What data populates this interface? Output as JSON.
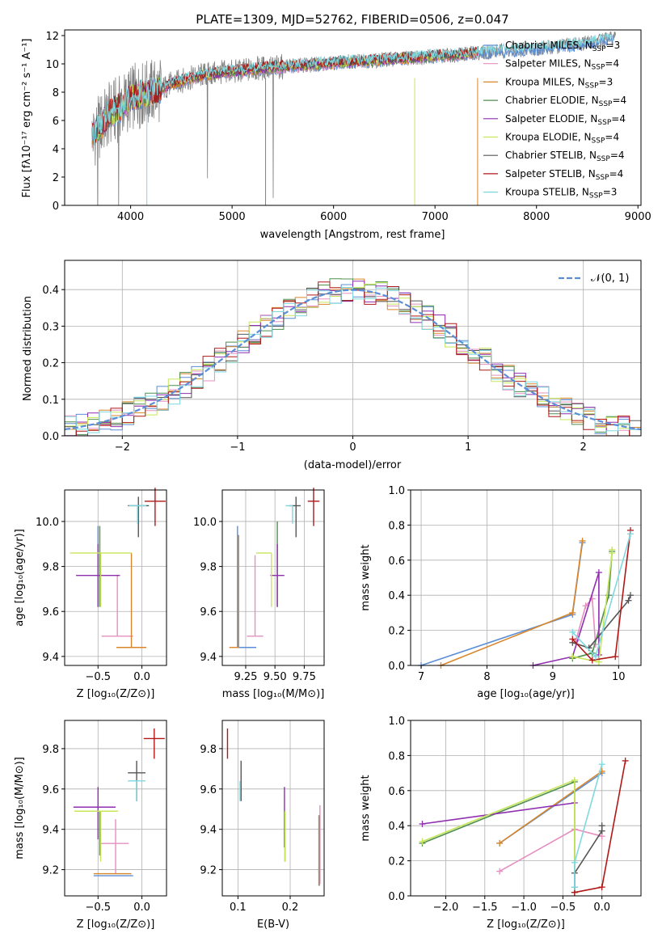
{
  "colors": {
    "chabrier_miles": "#5b8ed6",
    "salpeter_miles": "#e58fc0",
    "kroupa_miles": "#d8862a",
    "chabrier_elodie": "#4f8f4f",
    "salpeter_elodie": "#8f2fb0",
    "kroupa_elodie": "#c8e65a",
    "chabrier_stelib": "#555555",
    "salpeter_stelib": "#b01818",
    "kroupa_stelib": "#7fd8e0",
    "data": "#808080",
    "gauss": "#5b8ed6"
  },
  "chart_data": [
    {
      "id": "spectrum",
      "type": "line",
      "title": "PLATE=1309, MJD=52762, FIBERID=0506, z=0.047",
      "xlabel": "wavelength [Angstrom, rest frame]",
      "ylabel": "Flux [fλ10⁻¹⁷ erg cm⁻² s⁻¹ A⁻¹]",
      "xlim": [
        3350,
        9030
      ],
      "ylim": [
        0,
        12.4
      ],
      "xticks": [
        4000,
        5000,
        6000,
        7000,
        8000,
        9000
      ],
      "yticks": [
        0,
        2,
        4,
        6,
        8,
        10,
        12
      ],
      "grid": false,
      "legend_position": "top-right",
      "legend": [
        {
          "name": "Chabrier MILES, N",
          "sub": "SSP",
          "tail": "=3",
          "color": "chabrier_miles"
        },
        {
          "name": "Salpeter MILES, N",
          "sub": "SSP",
          "tail": "=4",
          "color": "salpeter_miles"
        },
        {
          "name": "Kroupa MILES, N",
          "sub": "SSP",
          "tail": "=3",
          "color": "kroupa_miles"
        },
        {
          "name": "Chabrier ELODIE, N",
          "sub": "SSP",
          "tail": "=4",
          "color": "chabrier_elodie"
        },
        {
          "name": "Salpeter ELODIE, N",
          "sub": "SSP",
          "tail": "=4",
          "color": "salpeter_elodie"
        },
        {
          "name": "Kroupa ELODIE, N",
          "sub": "SSP",
          "tail": "=4",
          "color": "kroupa_elodie"
        },
        {
          "name": "Chabrier STELIB, N",
          "sub": "SSP",
          "tail": "=4",
          "color": "chabrier_stelib"
        },
        {
          "name": "Salpeter STELIB, N",
          "sub": "SSP",
          "tail": "=4",
          "color": "salpeter_stelib"
        },
        {
          "name": "Kroupa STELIB, N",
          "sub": "SSP",
          "tail": "=3",
          "color": "kroupa_stelib"
        }
      ],
      "continuum": {
        "x": [
          3620,
          3700,
          3800,
          3900,
          4000,
          4100,
          4200,
          4300,
          4400,
          4500,
          4700,
          4900,
          5100,
          5300,
          5500,
          5700,
          5900,
          6100,
          6300,
          6500,
          6700,
          6900,
          7100,
          7300,
          7420
        ],
        "y": [
          4.8,
          5.6,
          6.5,
          6.9,
          7.6,
          7.8,
          8.0,
          8.2,
          8.6,
          8.8,
          9.2,
          9.4,
          9.5,
          9.7,
          9.8,
          9.9,
          10.0,
          10.1,
          10.2,
          10.3,
          10.4,
          10.5,
          10.6,
          10.7,
          10.8
        ]
      },
      "model_tail": {
        "x": [
          7420,
          7600,
          7800,
          8000,
          8200,
          8400,
          8600,
          8760
        ],
        "y": [
          10.8,
          10.9,
          11.0,
          11.1,
          11.2,
          11.4,
          11.6,
          11.8
        ]
      },
      "data_range": [
        3620,
        8780
      ]
    },
    {
      "id": "residuals",
      "type": "histogram",
      "xlabel": "(data-model)/error",
      "ylabel": "Normed distribution",
      "xlim": [
        -2.5,
        2.5
      ],
      "ylim": [
        0,
        0.48
      ],
      "xticks": [
        -2,
        -1,
        0,
        1,
        2
      ],
      "yticks": [
        0.0,
        0.1,
        0.2,
        0.3,
        0.4
      ],
      "grid": true,
      "legend_position": "top-right",
      "gauss_label": "𝒩(0, 1)",
      "bin_width": 0.1
    },
    {
      "id": "age_vs_Z",
      "type": "errorbar",
      "xlabel": "Z [log₁₀(Z/Z⊙)]",
      "ylabel": "age  [log₁₀(age/yr)]",
      "xlim": [
        -0.88,
        0.28
      ],
      "ylim": [
        9.36,
        10.14
      ],
      "xticks": [
        -0.5,
        0.0
      ],
      "xticklabels": [
        "−0.5",
        "0.0"
      ],
      "yticks": [
        9.4,
        9.6,
        9.8,
        10.0
      ],
      "grid": true,
      "points": [
        {
          "color": "chabrier_miles",
          "x": -0.5,
          "y": 9.62,
          "xe": [
            0.0,
            0.0
          ],
          "ye": [
            0.0,
            0.36
          ]
        },
        {
          "color": "salpeter_miles",
          "x": -0.28,
          "y": 9.49,
          "xe": [
            0.18,
            0.18
          ],
          "ye": [
            0.0,
            0.27
          ]
        },
        {
          "color": "kroupa_miles",
          "x": -0.12,
          "y": 9.44,
          "xe": [
            0.17,
            0.17
          ],
          "ye": [
            0.0,
            0.42
          ]
        },
        {
          "color": "chabrier_elodie",
          "x": -0.48,
          "y": 9.8,
          "xe": [
            0.0,
            0.0
          ],
          "ye": [
            0.18,
            0.18
          ]
        },
        {
          "color": "salpeter_elodie",
          "x": -0.5,
          "y": 9.76,
          "xe": [
            0.25,
            0.25
          ],
          "ye": [
            0.14,
            0.14
          ]
        },
        {
          "color": "kroupa_elodie",
          "x": -0.47,
          "y": 9.86,
          "xe": [
            0.35,
            0.35
          ],
          "ye": [
            0.24,
            0.0
          ]
        },
        {
          "color": "chabrier_stelib",
          "x": -0.04,
          "y": 10.07,
          "xe": [
            0.12,
            0.12
          ],
          "ye": [
            0.14,
            0.04
          ]
        },
        {
          "color": "salpeter_stelib",
          "x": 0.15,
          "y": 10.09,
          "xe": [
            0.12,
            0.12
          ],
          "ye": [
            0.11,
            0.06
          ]
        },
        {
          "color": "kroupa_stelib",
          "x": -0.05,
          "y": 10.07,
          "xe": [
            0.1,
            0.1
          ],
          "ye": [
            0.08,
            0.0
          ]
        }
      ]
    },
    {
      "id": "age_vs_mass",
      "type": "errorbar",
      "xlabel": "mass [log₁₀(M/M⊙)]",
      "ylabel": "",
      "xlim": [
        9.05,
        9.92
      ],
      "ylim": [
        9.36,
        10.14
      ],
      "xticks": [
        9.25,
        9.5,
        9.75
      ],
      "xticklabels": [
        "9.25",
        "9.50",
        "9.75"
      ],
      "yticks": [
        9.4,
        9.6,
        9.8,
        10.0
      ],
      "grid": true,
      "points": [
        {
          "color": "chabrier_miles",
          "x": 9.18,
          "y": 9.44,
          "xe": [
            0.0,
            0.16
          ],
          "ye": [
            0.0,
            0.54
          ]
        },
        {
          "color": "salpeter_miles",
          "x": 9.33,
          "y": 9.49,
          "xe": [
            0.07,
            0.07
          ],
          "ye": [
            0.0,
            0.36
          ]
        },
        {
          "color": "kroupa_miles",
          "x": 9.19,
          "y": 9.44,
          "xe": [
            0.08,
            0.0
          ],
          "ye": [
            0.0,
            0.5
          ]
        },
        {
          "color": "chabrier_elodie",
          "x": 9.52,
          "y": 9.8,
          "xe": [
            0.0,
            0.0
          ],
          "ye": [
            0.18,
            0.2
          ]
        },
        {
          "color": "salpeter_elodie",
          "x": 9.52,
          "y": 9.76,
          "xe": [
            0.06,
            0.06
          ],
          "ye": [
            0.14,
            0.14
          ]
        },
        {
          "color": "kroupa_elodie",
          "x": 9.47,
          "y": 9.86,
          "xe": [
            0.13,
            0.0
          ],
          "ye": [
            0.24,
            0.0
          ]
        },
        {
          "color": "chabrier_stelib",
          "x": 9.68,
          "y": 10.07,
          "xe": [
            0.06,
            0.04
          ],
          "ye": [
            0.14,
            0.04
          ]
        },
        {
          "color": "salpeter_stelib",
          "x": 9.83,
          "y": 10.09,
          "xe": [
            0.05,
            0.05
          ],
          "ye": [
            0.11,
            0.06
          ]
        },
        {
          "color": "kroupa_stelib",
          "x": 9.65,
          "y": 10.07,
          "xe": [
            0.06,
            0.0
          ],
          "ye": [
            0.08,
            0.0
          ]
        }
      ]
    },
    {
      "id": "weight_vs_age",
      "type": "line",
      "xlabel": "age  [log₁₀(age/yr)]",
      "ylabel": "mass weight",
      "xlim": [
        6.84,
        10.34
      ],
      "ylim": [
        0,
        1.0
      ],
      "xticks": [
        7,
        8,
        9,
        10
      ],
      "yticks": [
        0.0,
        0.2,
        0.4,
        0.6,
        0.8,
        1.0
      ],
      "grid": true,
      "series": [
        {
          "color": "chabrier_miles",
          "x": [
            7.0,
            9.3,
            9.45
          ],
          "y": [
            0.0,
            0.29,
            0.7
          ]
        },
        {
          "color": "kroupa_miles",
          "x": [
            7.3,
            9.3,
            9.45
          ],
          "y": [
            0.0,
            0.3,
            0.71
          ]
        },
        {
          "color": "salpeter_miles",
          "x": [
            9.35,
            9.5,
            9.6,
            9.65
          ],
          "y": [
            0.14,
            0.34,
            0.38,
            0.12
          ]
        },
        {
          "color": "chabrier_elodie",
          "x": [
            9.3,
            9.6,
            9.85,
            9.9
          ],
          "y": [
            0.04,
            0.07,
            0.4,
            0.65
          ]
        },
        {
          "color": "salpeter_elodie",
          "x": [
            8.7,
            9.3,
            9.7,
            9.7
          ],
          "y": [
            0.0,
            0.05,
            0.53,
            0.06
          ]
        },
        {
          "color": "kroupa_elodie",
          "x": [
            9.3,
            9.7,
            9.9,
            9.9
          ],
          "y": [
            0.05,
            0.02,
            0.64,
            0.66
          ]
        },
        {
          "color": "chabrier_stelib",
          "x": [
            9.3,
            9.55,
            10.15,
            10.18
          ],
          "y": [
            0.13,
            0.1,
            0.37,
            0.4
          ]
        },
        {
          "color": "salpeter_stelib",
          "x": [
            9.3,
            9.6,
            9.95,
            10.18
          ],
          "y": [
            0.15,
            0.03,
            0.05,
            0.77
          ]
        },
        {
          "color": "kroupa_stelib",
          "x": [
            9.3,
            9.65,
            10.18
          ],
          "y": [
            0.19,
            0.05,
            0.75
          ]
        }
      ]
    },
    {
      "id": "mass_vs_Z",
      "type": "errorbar",
      "xlabel": "Z [log₁₀(Z/Z⊙)]",
      "ylabel": "mass [log₁₀(M/M⊙)]",
      "xlim": [
        -0.88,
        0.28
      ],
      "ylim": [
        9.07,
        9.94
      ],
      "xticks": [
        -0.5,
        0.0
      ],
      "xticklabels": [
        "−0.5",
        "0.0"
      ],
      "yticks": [
        9.2,
        9.4,
        9.6,
        9.8
      ],
      "grid": true,
      "points": [
        {
          "color": "chabrier_miles",
          "x": -0.3,
          "y": 9.17,
          "xe": [
            0.25,
            0.2
          ],
          "ye": [
            0.0,
            0.0
          ]
        },
        {
          "color": "salpeter_miles",
          "x": -0.3,
          "y": 9.33,
          "xe": [
            0.18,
            0.15
          ],
          "ye": [
            0.15,
            0.12
          ]
        },
        {
          "color": "kroupa_miles",
          "x": -0.3,
          "y": 9.18,
          "xe": [
            0.25,
            0.18
          ],
          "ye": [
            0.0,
            0.0
          ]
        },
        {
          "color": "chabrier_elodie",
          "x": -0.48,
          "y": 9.49,
          "xe": [
            0.0,
            0.0
          ],
          "ye": [
            0.22,
            0.0
          ]
        },
        {
          "color": "salpeter_elodie",
          "x": -0.5,
          "y": 9.51,
          "xe": [
            0.28,
            0.2
          ],
          "ye": [
            0.16,
            0.1
          ]
        },
        {
          "color": "kroupa_elodie",
          "x": -0.47,
          "y": 9.49,
          "xe": [
            0.3,
            0.2
          ],
          "ye": [
            0.25,
            0.0
          ]
        },
        {
          "color": "chabrier_stelib",
          "x": -0.06,
          "y": 9.68,
          "xe": [
            0.1,
            0.1
          ],
          "ye": [
            0.14,
            0.06
          ]
        },
        {
          "color": "salpeter_stelib",
          "x": 0.14,
          "y": 9.85,
          "xe": [
            0.12,
            0.12
          ],
          "ye": [
            0.1,
            0.05
          ]
        },
        {
          "color": "kroupa_stelib",
          "x": -0.06,
          "y": 9.64,
          "xe": [
            0.1,
            0.1
          ],
          "ye": [
            0.1,
            0.0
          ]
        }
      ]
    },
    {
      "id": "mass_vs_ebv",
      "type": "errorbar",
      "xlabel": "E(B-V)",
      "ylabel": "",
      "xlim": [
        0.07,
        0.265
      ],
      "ylim": [
        9.07,
        9.94
      ],
      "xticks": [
        0.1,
        0.2
      ],
      "xticklabels": [
        "0.1",
        "0.2"
      ],
      "yticks": [
        9.2,
        9.4,
        9.6,
        9.8
      ],
      "grid": true,
      "points": [
        {
          "color": "chabrier_miles",
          "x": 0.255,
          "y": 9.17,
          "xe": [
            0,
            0
          ],
          "ye": [
            0.05,
            0.3
          ]
        },
        {
          "color": "salpeter_miles",
          "x": 0.257,
          "y": 9.33,
          "xe": [
            0,
            0
          ],
          "ye": [
            0.2,
            0.19
          ]
        },
        {
          "color": "kroupa_miles",
          "x": 0.256,
          "y": 9.18,
          "xe": [
            0,
            0
          ],
          "ye": [
            0.06,
            0.29
          ]
        },
        {
          "color": "chabrier_elodie",
          "x": 0.19,
          "y": 9.49,
          "xe": [
            0,
            0
          ],
          "ye": [
            0.25,
            0.0
          ]
        },
        {
          "color": "salpeter_elodie",
          "x": 0.189,
          "y": 9.51,
          "xe": [
            0,
            0
          ],
          "ye": [
            0.2,
            0.1
          ]
        },
        {
          "color": "kroupa_elodie",
          "x": 0.19,
          "y": 9.49,
          "xe": [
            0,
            0
          ],
          "ye": [
            0.25,
            0.0
          ]
        },
        {
          "color": "chabrier_stelib",
          "x": 0.106,
          "y": 9.68,
          "xe": [
            0,
            0
          ],
          "ye": [
            0.14,
            0.06
          ]
        },
        {
          "color": "salpeter_stelib",
          "x": 0.08,
          "y": 9.85,
          "xe": [
            0,
            0
          ],
          "ye": [
            0.1,
            0.05
          ]
        },
        {
          "color": "kroupa_stelib",
          "x": 0.104,
          "y": 9.64,
          "xe": [
            0,
            0
          ],
          "ye": [
            0.1,
            0.0
          ]
        }
      ]
    },
    {
      "id": "weight_vs_Z",
      "type": "line",
      "xlabel": "Z [log₁₀(Z/Z⊙)]",
      "ylabel": "mass weight",
      "xlim": [
        -2.45,
        0.5
      ],
      "ylim": [
        0,
        1.0
      ],
      "xticks": [
        -2.0,
        -1.5,
        -1.0,
        -0.5,
        0.0
      ],
      "xticklabels": [
        "−2.0",
        "−1.5",
        "−1.0",
        "−0.5",
        "0.0"
      ],
      "yticks": [
        0.0,
        0.2,
        0.4,
        0.6,
        0.8,
        1.0
      ],
      "grid": true,
      "series": [
        {
          "color": "chabrier_miles",
          "x": [
            -1.31,
            0.0
          ],
          "y": [
            0.3,
            0.7
          ]
        },
        {
          "color": "kroupa_miles",
          "x": [
            -1.31,
            0.0
          ],
          "y": [
            0.3,
            0.71
          ]
        },
        {
          "color": "salpeter_miles",
          "x": [
            -1.31,
            -0.35,
            0.0
          ],
          "y": [
            0.14,
            0.38,
            0.34
          ]
        },
        {
          "color": "chabrier_elodie",
          "x": [
            -2.3,
            -0.35,
            -0.35
          ],
          "y": [
            0.3,
            0.65,
            0.05
          ]
        },
        {
          "color": "salpeter_elodie",
          "x": [
            -2.3,
            -0.35
          ],
          "y": [
            0.41,
            0.53
          ]
        },
        {
          "color": "kroupa_elodie",
          "x": [
            -2.3,
            -0.35,
            -0.35
          ],
          "y": [
            0.31,
            0.66,
            0.02
          ]
        },
        {
          "color": "chabrier_stelib",
          "x": [
            -0.35,
            -0.35,
            0.0,
            0.0
          ],
          "y": [
            0.02,
            0.13,
            0.37,
            0.4
          ]
        },
        {
          "color": "salpeter_stelib",
          "x": [
            -0.35,
            0.0,
            0.3
          ],
          "y": [
            0.02,
            0.05,
            0.77
          ]
        },
        {
          "color": "kroupa_stelib",
          "x": [
            -0.35,
            -0.35,
            0.0
          ],
          "y": [
            0.05,
            0.19,
            0.75
          ]
        }
      ]
    }
  ]
}
